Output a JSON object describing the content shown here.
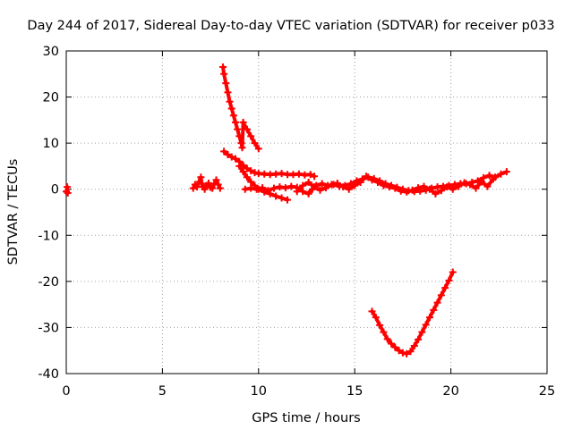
{
  "chart_data": {
    "type": "scatter",
    "title": "Day 244 of 2017, Sidereal Day-to-day VTEC variation (SDTVAR) for receiver p033",
    "xlabel": "GPS time / hours",
    "ylabel": "SDTVAR / TECUs",
    "xlim": [
      0,
      25
    ],
    "ylim": [
      -40,
      30
    ],
    "xticks": [
      0,
      5,
      10,
      15,
      20,
      25
    ],
    "yticks": [
      -40,
      -30,
      -20,
      -10,
      0,
      10,
      20,
      30
    ],
    "grid": true,
    "marker": "plus",
    "color": "#ff0000",
    "series": [
      {
        "points": [
          [
            0.0,
            -0.5
          ],
          [
            0.05,
            0.5
          ],
          [
            0.08,
            -0.8
          ]
        ]
      },
      {
        "points": [
          [
            6.6,
            0.2
          ],
          [
            6.7,
            1.0
          ],
          [
            6.8,
            0.5
          ],
          [
            6.9,
            1.6
          ],
          [
            7.0,
            2.6
          ],
          [
            7.05,
            1.2
          ],
          [
            7.1,
            0.5
          ],
          [
            7.2,
            0.0
          ],
          [
            7.3,
            0.8
          ],
          [
            7.4,
            1.3
          ],
          [
            7.5,
            0.4
          ],
          [
            7.6,
            0.2
          ],
          [
            7.7,
            1.2
          ],
          [
            7.8,
            2.0
          ],
          [
            7.9,
            1.0
          ],
          [
            8.0,
            0.2
          ]
        ]
      },
      {
        "points": [
          [
            8.15,
            26.5
          ],
          [
            8.2,
            25.0
          ],
          [
            8.3,
            23.0
          ],
          [
            8.4,
            21.0
          ],
          [
            8.5,
            19.0
          ],
          [
            8.6,
            17.5
          ],
          [
            8.7,
            16.0
          ],
          [
            8.8,
            14.5
          ],
          [
            8.9,
            13.0
          ],
          [
            9.0,
            11.5
          ],
          [
            9.1,
            10.0
          ],
          [
            9.15,
            9.0
          ],
          [
            9.2,
            14.5
          ],
          [
            9.4,
            13.0
          ],
          [
            9.6,
            11.5
          ],
          [
            9.8,
            10.0
          ],
          [
            10.0,
            8.8
          ]
        ]
      },
      {
        "points": [
          [
            8.2,
            8.2
          ],
          [
            8.4,
            7.5
          ],
          [
            8.6,
            7.0
          ],
          [
            8.8,
            6.6
          ],
          [
            9.0,
            6.0
          ],
          [
            9.2,
            5.2
          ],
          [
            9.4,
            4.5
          ],
          [
            9.6,
            4.0
          ],
          [
            9.8,
            3.6
          ],
          [
            10.0,
            3.4
          ],
          [
            10.3,
            3.3
          ],
          [
            10.6,
            3.2
          ],
          [
            10.9,
            3.3
          ],
          [
            11.2,
            3.4
          ],
          [
            11.5,
            3.2
          ],
          [
            11.8,
            3.2
          ],
          [
            12.1,
            3.3
          ],
          [
            12.4,
            3.1
          ],
          [
            12.7,
            3.2
          ],
          [
            12.9,
            2.8
          ]
        ]
      },
      {
        "points": [
          [
            9.0,
            5.0
          ],
          [
            9.2,
            3.8
          ],
          [
            9.4,
            2.6
          ],
          [
            9.6,
            1.6
          ],
          [
            9.8,
            0.8
          ],
          [
            10.0,
            0.0
          ],
          [
            10.3,
            -0.6
          ],
          [
            10.6,
            -1.0
          ],
          [
            10.9,
            -1.5
          ],
          [
            11.2,
            -1.9
          ],
          [
            11.5,
            -2.3
          ]
        ]
      },
      {
        "points": [
          [
            9.3,
            0.0
          ],
          [
            9.6,
            0.2
          ],
          [
            9.9,
            0.0
          ],
          [
            10.2,
            0.3
          ],
          [
            10.5,
            -0.3
          ],
          [
            10.8,
            0.2
          ],
          [
            11.1,
            0.5
          ],
          [
            11.4,
            0.3
          ],
          [
            11.7,
            0.6
          ],
          [
            12.0,
            0.4
          ],
          [
            12.3,
            -0.5
          ],
          [
            12.6,
            -1.0
          ],
          [
            12.8,
            0.0
          ],
          [
            13.0,
            0.8
          ],
          [
            13.3,
            1.2
          ],
          [
            13.6,
            0.8
          ],
          [
            13.9,
            1.0
          ],
          [
            14.2,
            0.6
          ],
          [
            14.5,
            0.8
          ],
          [
            14.8,
            1.2
          ],
          [
            15.1,
            1.8
          ],
          [
            15.4,
            2.2
          ],
          [
            15.7,
            2.6
          ],
          [
            16.0,
            2.3
          ],
          [
            16.3,
            1.8
          ],
          [
            16.6,
            1.2
          ],
          [
            16.9,
            0.8
          ],
          [
            17.2,
            0.4
          ],
          [
            17.5,
            0.0
          ],
          [
            17.8,
            -0.3
          ],
          [
            18.1,
            -0.5
          ],
          [
            18.4,
            -0.4
          ],
          [
            18.7,
            -0.2
          ],
          [
            19.0,
            0.2
          ],
          [
            19.3,
            0.5
          ],
          [
            19.6,
            0.6
          ],
          [
            19.9,
            0.8
          ],
          [
            20.2,
            1.0
          ],
          [
            20.5,
            1.2
          ],
          [
            20.8,
            1.2
          ],
          [
            21.1,
            1.5
          ],
          [
            21.4,
            1.8
          ],
          [
            21.7,
            2.5
          ],
          [
            22.0,
            3.0
          ],
          [
            22.3,
            2.6
          ],
          [
            22.6,
            3.3
          ],
          [
            22.9,
            3.8
          ]
        ]
      },
      {
        "points": [
          [
            12.0,
            -0.5
          ],
          [
            12.3,
            0.8
          ],
          [
            12.6,
            1.5
          ],
          [
            12.9,
            0.5
          ],
          [
            13.2,
            -0.2
          ],
          [
            13.5,
            0.3
          ],
          [
            13.8,
            1.0
          ],
          [
            14.1,
            1.3
          ],
          [
            14.4,
            0.5
          ],
          [
            14.7,
            0.0
          ],
          [
            15.0,
            0.8
          ],
          [
            15.3,
            1.5
          ],
          [
            15.6,
            2.8
          ],
          [
            15.9,
            2.0
          ],
          [
            16.2,
            1.5
          ],
          [
            16.5,
            0.8
          ],
          [
            16.8,
            0.5
          ],
          [
            17.1,
            0.2
          ],
          [
            17.4,
            -0.4
          ],
          [
            17.7,
            -0.6
          ],
          [
            18.0,
            -0.2
          ],
          [
            18.3,
            0.3
          ],
          [
            18.6,
            0.6
          ],
          [
            18.9,
            0.0
          ],
          [
            19.2,
            -1.0
          ],
          [
            19.5,
            -0.3
          ],
          [
            19.8,
            0.5
          ],
          [
            20.1,
            0.0
          ],
          [
            20.4,
            0.6
          ],
          [
            20.7,
            1.4
          ],
          [
            21.0,
            1.0
          ],
          [
            21.3,
            0.2
          ],
          [
            21.6,
            1.6
          ],
          [
            21.9,
            0.6
          ],
          [
            22.2,
            2.2
          ]
        ]
      },
      {
        "points": [
          [
            15.9,
            -26.5
          ],
          [
            16.1,
            -27.8
          ],
          [
            16.3,
            -29.5
          ],
          [
            16.5,
            -31.0
          ],
          [
            16.7,
            -32.5
          ],
          [
            16.9,
            -33.5
          ],
          [
            17.1,
            -34.3
          ],
          [
            17.3,
            -35.0
          ],
          [
            17.5,
            -35.5
          ],
          [
            17.7,
            -35.7
          ],
          [
            17.9,
            -35.2
          ],
          [
            18.1,
            -34.0
          ],
          [
            18.3,
            -32.6
          ],
          [
            18.5,
            -31.0
          ],
          [
            18.7,
            -29.4
          ],
          [
            18.9,
            -27.8
          ],
          [
            19.1,
            -26.2
          ],
          [
            19.3,
            -24.6
          ],
          [
            19.5,
            -23.0
          ],
          [
            19.7,
            -21.4
          ],
          [
            19.9,
            -19.8
          ],
          [
            20.1,
            -18.0
          ]
        ]
      }
    ]
  }
}
